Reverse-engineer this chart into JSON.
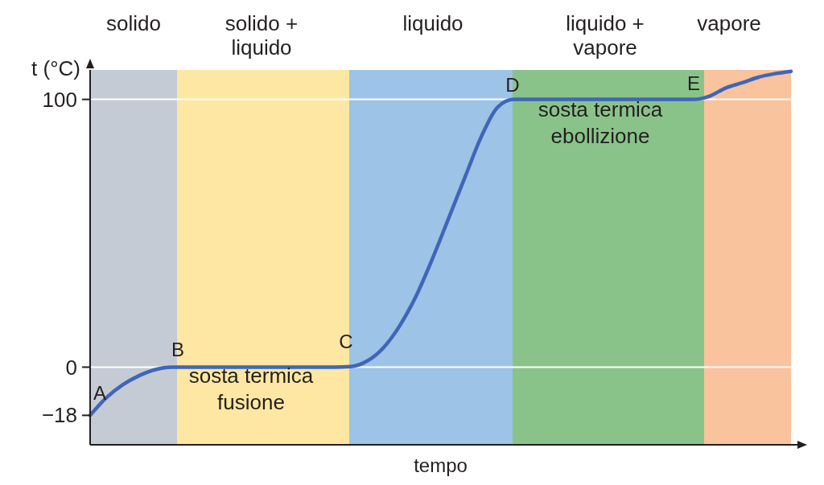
{
  "chart_data": {
    "type": "line",
    "xlabel": "tempo",
    "ylabel": "t (°C)",
    "categories": [
      null,
      null,
      null,
      null,
      null,
      null,
      null,
      null,
      null,
      null,
      null,
      null,
      null,
      null,
      null,
      null,
      null,
      null,
      null,
      null,
      null,
      null,
      null,
      null,
      null,
      null,
      null,
      null,
      null,
      null,
      null,
      null,
      null,
      null,
      null,
      null,
      null,
      null,
      null,
      null,
      null,
      null,
      null,
      null
    ],
    "ylim": [
      -29,
      111
    ],
    "yticks": [
      -18,
      0,
      100
    ],
    "marker": "none",
    "line_style": "solid",
    "series": [
      {
        "color": "#3f66b8",
        "values": [
          -18,
          -11.4,
          -6.6,
          -3.2,
          -0.9,
          0,
          0,
          0,
          0,
          0,
          0,
          0,
          0,
          0,
          0,
          0,
          0.2,
          2.3,
          7.3,
          15.5,
          26.6,
          40.5,
          55.7,
          71.0,
          86.1,
          97.1,
          100,
          100,
          100,
          100,
          100,
          100,
          100,
          100,
          100,
          100,
          100,
          100,
          101.2,
          104.3,
          106.2,
          108.3,
          109.6,
          110.5
        ]
      }
    ],
    "ref_lines": [
      {
        "axis": "y",
        "value": 0,
        "color": "#ffffff"
      },
      {
        "axis": "y",
        "value": 100,
        "color": "#ffffff"
      }
    ],
    "annotations": [
      "A",
      "B",
      "C",
      "D",
      "E",
      "sosta termica fusione",
      "sosta termica ebollizione",
      "solido",
      "solido + liquido",
      "liquido",
      "liquido + vapore",
      "vapore"
    ]
  }
}
